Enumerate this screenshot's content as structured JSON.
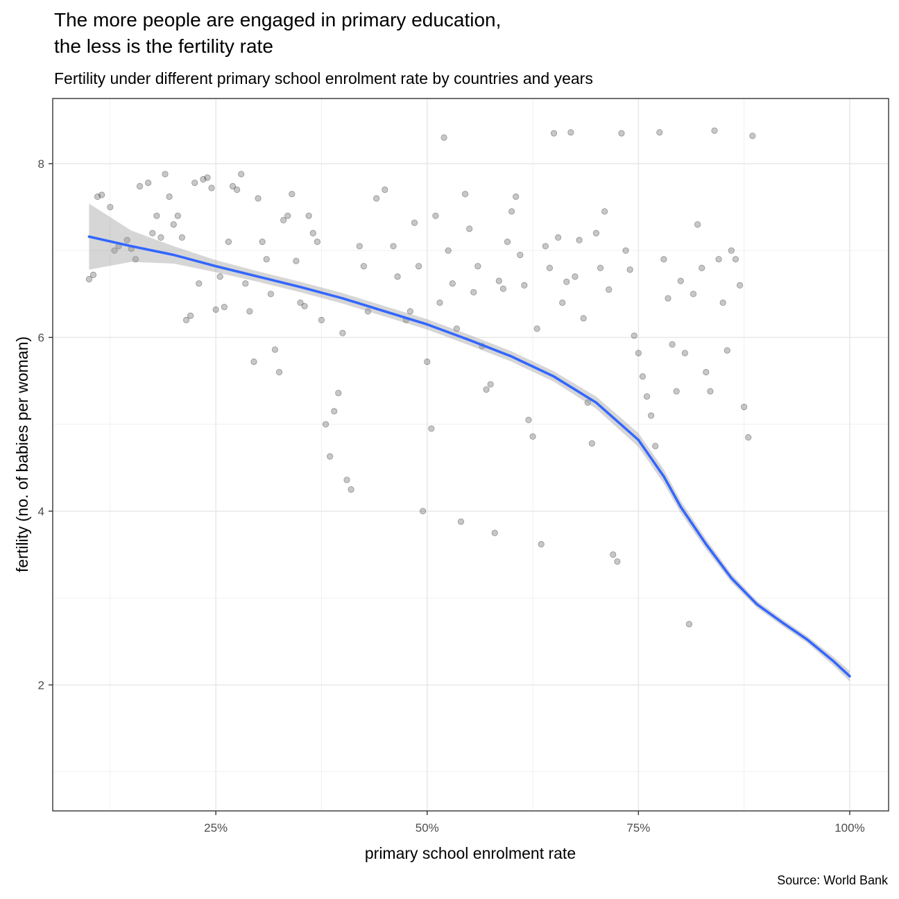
{
  "chart_data": {
    "type": "scatter",
    "title": "The more people are engaged in primary education,\nthe less is the fertility rate",
    "subtitle": "Fertility under different primary school enrolment rate by countries and years",
    "caption": "Source: World Bank",
    "xlabel": "primary school enrolment rate",
    "ylabel": "fertility (no. of babies per woman)",
    "x_ticks": [
      {
        "value": 0.25,
        "label": "25%"
      },
      {
        "value": 0.5,
        "label": "50%"
      },
      {
        "value": 0.75,
        "label": "75%"
      },
      {
        "value": 1.0,
        "label": "100%"
      }
    ],
    "y_ticks": [
      {
        "value": 2,
        "label": "2"
      },
      {
        "value": 4,
        "label": "4"
      },
      {
        "value": 6,
        "label": "6"
      },
      {
        "value": 8,
        "label": "8"
      }
    ],
    "xlim": [
      0.057,
      1.046
    ],
    "ylim": [
      0.55,
      8.75
    ],
    "grid": true,
    "point_color": "#000000",
    "point_opacity": 0.22,
    "smooth_color": "#3366FF",
    "ribbon_color": "#999999",
    "smooth_line": [
      {
        "x": 0.1,
        "y": 7.16,
        "se": 0.38
      },
      {
        "x": 0.15,
        "y": 7.05,
        "se": 0.18
      },
      {
        "x": 0.2,
        "y": 6.95,
        "se": 0.1
      },
      {
        "x": 0.25,
        "y": 6.82,
        "se": 0.07
      },
      {
        "x": 0.3,
        "y": 6.7,
        "se": 0.06
      },
      {
        "x": 0.35,
        "y": 6.58,
        "se": 0.06
      },
      {
        "x": 0.4,
        "y": 6.45,
        "se": 0.06
      },
      {
        "x": 0.45,
        "y": 6.3,
        "se": 0.06
      },
      {
        "x": 0.5,
        "y": 6.15,
        "se": 0.06
      },
      {
        "x": 0.55,
        "y": 5.97,
        "se": 0.06
      },
      {
        "x": 0.6,
        "y": 5.78,
        "se": 0.06
      },
      {
        "x": 0.65,
        "y": 5.55,
        "se": 0.06
      },
      {
        "x": 0.7,
        "y": 5.25,
        "se": 0.07
      },
      {
        "x": 0.75,
        "y": 4.82,
        "se": 0.08
      },
      {
        "x": 0.78,
        "y": 4.4,
        "se": 0.08
      },
      {
        "x": 0.8,
        "y": 4.05,
        "se": 0.07
      },
      {
        "x": 0.83,
        "y": 3.62,
        "se": 0.06
      },
      {
        "x": 0.86,
        "y": 3.23,
        "se": 0.05
      },
      {
        "x": 0.89,
        "y": 2.93,
        "se": 0.04
      },
      {
        "x": 0.92,
        "y": 2.72,
        "se": 0.04
      },
      {
        "x": 0.95,
        "y": 2.52,
        "se": 0.04
      },
      {
        "x": 0.98,
        "y": 2.28,
        "se": 0.05
      },
      {
        "x": 1.0,
        "y": 2.1,
        "se": 0.06
      }
    ],
    "points": [
      [
        0.1,
        6.67
      ],
      [
        0.105,
        6.72
      ],
      [
        0.11,
        7.62
      ],
      [
        0.115,
        7.64
      ],
      [
        0.125,
        7.5
      ],
      [
        0.13,
        7.0
      ],
      [
        0.135,
        7.05
      ],
      [
        0.145,
        7.12
      ],
      [
        0.15,
        7.02
      ],
      [
        0.155,
        6.9
      ],
      [
        0.16,
        7.74
      ],
      [
        0.17,
        7.78
      ],
      [
        0.175,
        7.2
      ],
      [
        0.18,
        7.4
      ],
      [
        0.185,
        7.15
      ],
      [
        0.19,
        7.88
      ],
      [
        0.195,
        7.62
      ],
      [
        0.2,
        7.3
      ],
      [
        0.205,
        7.4
      ],
      [
        0.21,
        7.15
      ],
      [
        0.215,
        6.2
      ],
      [
        0.22,
        6.25
      ],
      [
        0.225,
        7.78
      ],
      [
        0.23,
        6.62
      ],
      [
        0.235,
        7.82
      ],
      [
        0.24,
        7.84
      ],
      [
        0.245,
        7.72
      ],
      [
        0.25,
        6.32
      ],
      [
        0.255,
        6.7
      ],
      [
        0.26,
        6.35
      ],
      [
        0.265,
        7.1
      ],
      [
        0.27,
        7.74
      ],
      [
        0.275,
        7.7
      ],
      [
        0.28,
        7.88
      ],
      [
        0.285,
        6.62
      ],
      [
        0.29,
        6.3
      ],
      [
        0.295,
        5.72
      ],
      [
        0.3,
        7.6
      ],
      [
        0.305,
        7.1
      ],
      [
        0.31,
        6.9
      ],
      [
        0.315,
        6.5
      ],
      [
        0.32,
        5.86
      ],
      [
        0.325,
        5.6
      ],
      [
        0.33,
        7.35
      ],
      [
        0.335,
        7.4
      ],
      [
        0.34,
        7.65
      ],
      [
        0.345,
        6.88
      ],
      [
        0.35,
        6.4
      ],
      [
        0.355,
        6.36
      ],
      [
        0.36,
        7.4
      ],
      [
        0.365,
        7.2
      ],
      [
        0.37,
        7.1
      ],
      [
        0.375,
        6.2
      ],
      [
        0.38,
        5.0
      ],
      [
        0.385,
        4.63
      ],
      [
        0.39,
        5.15
      ],
      [
        0.395,
        5.36
      ],
      [
        0.4,
        6.05
      ],
      [
        0.405,
        4.36
      ],
      [
        0.41,
        4.25
      ],
      [
        0.42,
        7.05
      ],
      [
        0.425,
        6.82
      ],
      [
        0.43,
        6.3
      ],
      [
        0.44,
        7.6
      ],
      [
        0.45,
        7.7
      ],
      [
        0.46,
        7.05
      ],
      [
        0.465,
        6.7
      ],
      [
        0.475,
        6.2
      ],
      [
        0.48,
        6.3
      ],
      [
        0.485,
        7.32
      ],
      [
        0.49,
        6.82
      ],
      [
        0.495,
        4.0
      ],
      [
        0.5,
        5.72
      ],
      [
        0.505,
        4.95
      ],
      [
        0.51,
        7.4
      ],
      [
        0.515,
        6.4
      ],
      [
        0.52,
        8.3
      ],
      [
        0.525,
        7.0
      ],
      [
        0.53,
        6.62
      ],
      [
        0.535,
        6.1
      ],
      [
        0.54,
        3.88
      ],
      [
        0.545,
        7.65
      ],
      [
        0.55,
        7.25
      ],
      [
        0.555,
        6.52
      ],
      [
        0.56,
        6.82
      ],
      [
        0.565,
        5.9
      ],
      [
        0.57,
        5.4
      ],
      [
        0.575,
        5.46
      ],
      [
        0.58,
        3.75
      ],
      [
        0.585,
        6.65
      ],
      [
        0.59,
        6.56
      ],
      [
        0.595,
        7.1
      ],
      [
        0.6,
        7.45
      ],
      [
        0.605,
        7.62
      ],
      [
        0.61,
        6.95
      ],
      [
        0.615,
        6.6
      ],
      [
        0.62,
        5.05
      ],
      [
        0.625,
        4.86
      ],
      [
        0.63,
        6.1
      ],
      [
        0.635,
        3.62
      ],
      [
        0.64,
        7.05
      ],
      [
        0.645,
        6.8
      ],
      [
        0.65,
        8.35
      ],
      [
        0.655,
        7.15
      ],
      [
        0.66,
        6.4
      ],
      [
        0.665,
        6.64
      ],
      [
        0.67,
        8.36
      ],
      [
        0.675,
        6.7
      ],
      [
        0.68,
        7.12
      ],
      [
        0.685,
        6.22
      ],
      [
        0.69,
        5.25
      ],
      [
        0.695,
        4.78
      ],
      [
        0.7,
        7.2
      ],
      [
        0.705,
        6.8
      ],
      [
        0.71,
        7.45
      ],
      [
        0.715,
        6.55
      ],
      [
        0.72,
        3.5
      ],
      [
        0.725,
        3.42
      ],
      [
        0.73,
        8.35
      ],
      [
        0.735,
        7.0
      ],
      [
        0.74,
        6.78
      ],
      [
        0.745,
        6.02
      ],
      [
        0.75,
        5.82
      ],
      [
        0.755,
        5.55
      ],
      [
        0.76,
        5.32
      ],
      [
        0.765,
        5.1
      ],
      [
        0.77,
        4.75
      ],
      [
        0.775,
        8.36
      ],
      [
        0.78,
        6.9
      ],
      [
        0.785,
        6.45
      ],
      [
        0.79,
        5.92
      ],
      [
        0.795,
        5.38
      ],
      [
        0.8,
        6.65
      ],
      [
        0.805,
        5.82
      ],
      [
        0.81,
        2.7
      ],
      [
        0.815,
        6.5
      ],
      [
        0.82,
        7.3
      ],
      [
        0.825,
        6.8
      ],
      [
        0.83,
        5.6
      ],
      [
        0.835,
        5.38
      ],
      [
        0.84,
        8.38
      ],
      [
        0.845,
        6.9
      ],
      [
        0.85,
        6.4
      ],
      [
        0.855,
        5.85
      ],
      [
        0.86,
        7.0
      ],
      [
        0.865,
        6.9
      ],
      [
        0.87,
        6.6
      ],
      [
        0.875,
        5.2
      ],
      [
        0.88,
        4.85
      ],
      [
        0.885,
        8.32
      ]
    ]
  }
}
